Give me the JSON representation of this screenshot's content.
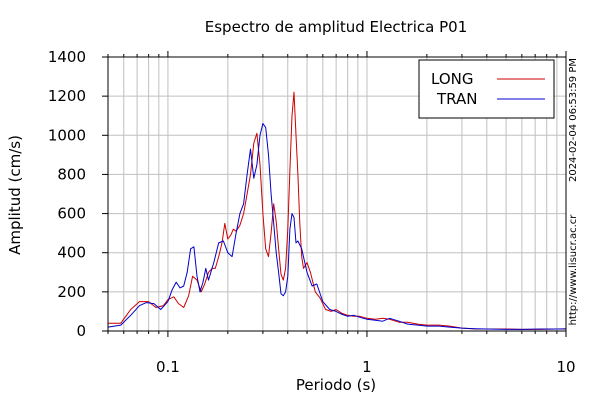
{
  "chart_data": {
    "type": "line",
    "title": "Espectro de amplitud Electrica P01",
    "xlabel": "Periodo (s)",
    "ylabel": "Amplitud (cm/s)",
    "xscale": "log",
    "xlim": [
      0.05,
      10
    ],
    "ylim": [
      0,
      1400
    ],
    "x_ticks": [
      0.1,
      1,
      10
    ],
    "x_tick_labels": [
      "0.1",
      "1",
      "10"
    ],
    "y_ticks": [
      0,
      200,
      400,
      600,
      800,
      1000,
      1200,
      1400
    ],
    "y_tick_labels": [
      "0",
      "200",
      "400",
      "600",
      "800",
      "1000",
      "1200",
      "1400"
    ],
    "grid": true,
    "legend_position": "top-right",
    "side_text": [
      "2024-02-04 06:53:59 PM",
      "http://www.lisucr.ac.cr"
    ],
    "series": [
      {
        "name": "LONG",
        "color": "#cc0000",
        "x": [
          0.05,
          0.058,
          0.065,
          0.072,
          0.08,
          0.087,
          0.095,
          0.1,
          0.107,
          0.113,
          0.12,
          0.127,
          0.133,
          0.14,
          0.147,
          0.153,
          0.16,
          0.167,
          0.173,
          0.18,
          0.187,
          0.193,
          0.2,
          0.207,
          0.213,
          0.22,
          0.23,
          0.24,
          0.25,
          0.26,
          0.27,
          0.28,
          0.29,
          0.3,
          0.31,
          0.32,
          0.33,
          0.34,
          0.35,
          0.36,
          0.37,
          0.38,
          0.39,
          0.4,
          0.41,
          0.42,
          0.43,
          0.44,
          0.45,
          0.46,
          0.47,
          0.48,
          0.5,
          0.52,
          0.55,
          0.58,
          0.62,
          0.66,
          0.7,
          0.75,
          0.8,
          0.86,
          0.92,
          1.0,
          1.1,
          1.2,
          1.3,
          1.45,
          1.6,
          1.8,
          2.0,
          2.3,
          2.6,
          3.0,
          3.5,
          4.0,
          5.0,
          6.0,
          7.5,
          9.0,
          10.0
        ],
        "values": [
          40,
          40,
          110,
          150,
          150,
          120,
          130,
          160,
          175,
          140,
          120,
          180,
          280,
          260,
          200,
          240,
          300,
          320,
          320,
          380,
          450,
          550,
          470,
          490,
          520,
          510,
          540,
          600,
          700,
          800,
          960,
          1010,
          850,
          600,
          420,
          380,
          500,
          650,
          560,
          420,
          290,
          260,
          320,
          520,
          820,
          1100,
          1220,
          1000,
          800,
          550,
          380,
          320,
          350,
          300,
          200,
          170,
          110,
          100,
          110,
          90,
          80,
          75,
          75,
          65,
          60,
          65,
          60,
          45,
          45,
          35,
          30,
          30,
          25,
          15,
          10,
          10,
          10,
          8,
          8,
          10,
          12
        ]
      },
      {
        "name": "TRAN",
        "color": "#0000cc",
        "x": [
          0.05,
          0.058,
          0.065,
          0.072,
          0.078,
          0.085,
          0.092,
          0.1,
          0.105,
          0.11,
          0.115,
          0.12,
          0.125,
          0.13,
          0.135,
          0.14,
          0.145,
          0.15,
          0.155,
          0.16,
          0.17,
          0.18,
          0.19,
          0.2,
          0.21,
          0.22,
          0.23,
          0.24,
          0.25,
          0.26,
          0.27,
          0.28,
          0.29,
          0.3,
          0.31,
          0.32,
          0.33,
          0.34,
          0.35,
          0.36,
          0.37,
          0.38,
          0.39,
          0.4,
          0.41,
          0.42,
          0.43,
          0.44,
          0.45,
          0.47,
          0.5,
          0.53,
          0.56,
          0.6,
          0.65,
          0.7,
          0.75,
          0.8,
          0.86,
          0.92,
          1.0,
          1.1,
          1.2,
          1.3,
          1.45,
          1.6,
          1.8,
          2.0,
          2.3,
          2.6,
          3.0,
          3.5,
          4.0,
          5.0,
          6.0,
          7.5,
          9.0,
          10.0
        ],
        "values": [
          20,
          30,
          80,
          130,
          145,
          140,
          110,
          150,
          210,
          250,
          220,
          230,
          300,
          420,
          430,
          280,
          200,
          250,
          320,
          260,
          350,
          450,
          460,
          400,
          380,
          500,
          600,
          650,
          800,
          930,
          780,
          850,
          1000,
          1060,
          1040,
          900,
          700,
          550,
          400,
          300,
          190,
          180,
          200,
          280,
          520,
          600,
          580,
          450,
          460,
          420,
          300,
          230,
          240,
          150,
          110,
          100,
          85,
          75,
          80,
          70,
          60,
          55,
          50,
          65,
          50,
          35,
          30,
          25,
          25,
          20,
          15,
          12,
          10,
          8,
          8,
          10,
          10,
          10
        ]
      }
    ]
  }
}
